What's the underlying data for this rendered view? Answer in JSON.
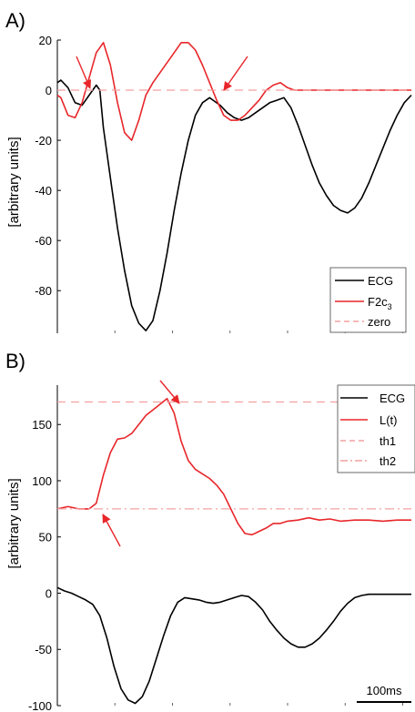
{
  "chart_data": [
    {
      "type": "line",
      "panel_label": "A)",
      "ylabel": "[arbitrary units]",
      "ylim": [
        -97,
        20
      ],
      "yticks": [
        20,
        0,
        -20,
        -40,
        -60,
        -80
      ],
      "xlim": [
        0,
        100
      ],
      "grid": false,
      "legend": {
        "position": "bottom-right",
        "entries": [
          "ECG",
          "F2c3",
          "zero"
        ]
      },
      "annotations": [
        "arrow near first F2c3 zero crossing",
        "arrow near second F2c3 zero crossing"
      ],
      "series": [
        {
          "name": "ECG",
          "color": "#000000",
          "style": "solid",
          "x": [
            0,
            1,
            3,
            5,
            7,
            9,
            11,
            12,
            13,
            15,
            17,
            19,
            21,
            23,
            25,
            27,
            29,
            31,
            33,
            35,
            37,
            39,
            41,
            43,
            44,
            46,
            48,
            50,
            52,
            54,
            56,
            58,
            60,
            62,
            64,
            66,
            68,
            70,
            72,
            74,
            76,
            78,
            80,
            82,
            84,
            86,
            88,
            90,
            92,
            94,
            96,
            98,
            100
          ],
          "y": [
            3,
            4,
            1,
            -5,
            -6,
            -2,
            2,
            0,
            -15,
            -35,
            -55,
            -72,
            -86,
            -93,
            -96,
            -92,
            -80,
            -65,
            -48,
            -33,
            -20,
            -10,
            -5,
            -3,
            -4,
            -6,
            -9,
            -11,
            -12,
            -11,
            -9,
            -7,
            -5,
            -4,
            -3,
            -7,
            -14,
            -22,
            -30,
            -37,
            -42,
            -46,
            -48,
            -49,
            -47,
            -43,
            -37,
            -30,
            -23,
            -16,
            -10,
            -5,
            -2
          ]
        },
        {
          "name": "F2c3",
          "color": "#e8262a",
          "style": "solid",
          "x": [
            0,
            1,
            3,
            5,
            7,
            9,
            11,
            13,
            15,
            17,
            19,
            21,
            23,
            25,
            27,
            29,
            31,
            33,
            35,
            37,
            39,
            41,
            43,
            45,
            47,
            49,
            51,
            53,
            55,
            57,
            59,
            61,
            63,
            65,
            67,
            69,
            72,
            75,
            80,
            85,
            90,
            95,
            100
          ],
          "y": [
            -2,
            -3,
            -10,
            -11,
            -5,
            5,
            15,
            19,
            10,
            -5,
            -17,
            -20,
            -12,
            -2,
            3,
            7,
            11,
            15,
            19,
            19,
            16,
            10,
            3,
            -4,
            -10,
            -12,
            -12,
            -10,
            -7,
            -4,
            0,
            2,
            3,
            1,
            0,
            0,
            0,
            0,
            0,
            0,
            0,
            0,
            0
          ]
        },
        {
          "name": "zero",
          "color": "#f4a0a0",
          "style": "dashed",
          "x": [
            0,
            100
          ],
          "y": [
            0,
            0
          ]
        }
      ]
    },
    {
      "type": "line",
      "panel_label": "B)",
      "ylabel": "[arbitrary units]",
      "ylim": [
        -100,
        185
      ],
      "yticks": [
        150,
        100,
        50,
        0,
        -50,
        -100
      ],
      "xlim": [
        0,
        100
      ],
      "grid": false,
      "legend": {
        "position": "top-right",
        "entries": [
          "ECG",
          "L(t)",
          "th1",
          "th2"
        ]
      },
      "scale_bar": "100ms",
      "annotations": [
        "arrow at L(t) rise crossing th2",
        "arrow at L(t) peak near th1"
      ],
      "series": [
        {
          "name": "ECG",
          "color": "#000000",
          "style": "solid",
          "x": [
            0,
            2,
            4,
            6,
            8,
            10,
            12,
            14,
            16,
            18,
            20,
            22,
            24,
            26,
            28,
            30,
            32,
            34,
            36,
            38,
            40,
            42,
            44,
            46,
            48,
            50,
            52,
            54,
            56,
            58,
            60,
            62,
            64,
            66,
            68,
            70,
            72,
            74,
            76,
            78,
            80,
            82,
            84,
            86,
            88,
            90,
            92,
            94,
            96,
            98,
            100
          ],
          "y": [
            5,
            2,
            0,
            -3,
            -6,
            -10,
            -20,
            -40,
            -65,
            -85,
            -95,
            -98,
            -92,
            -78,
            -58,
            -38,
            -20,
            -8,
            -4,
            -5,
            -6,
            -8,
            -9,
            -8,
            -6,
            -4,
            -2,
            -3,
            -8,
            -15,
            -25,
            -33,
            -40,
            -45,
            -48,
            -48,
            -45,
            -40,
            -33,
            -25,
            -16,
            -9,
            -4,
            -2,
            -1,
            -1,
            -1,
            -1,
            -1,
            -1,
            -1
          ]
        },
        {
          "name": "L(t)",
          "color": "#e8262a",
          "style": "solid",
          "x": [
            0,
            3,
            6,
            9,
            11,
            13,
            15,
            17,
            19,
            21,
            23,
            25,
            27,
            29,
            31,
            33,
            35,
            37,
            39,
            41,
            43,
            45,
            47,
            49,
            51,
            53,
            55,
            57,
            59,
            61,
            63,
            65,
            68,
            71,
            74,
            77,
            80,
            84,
            88,
            92,
            96,
            100
          ],
          "y": [
            75,
            77,
            75,
            75,
            80,
            105,
            125,
            137,
            138,
            142,
            150,
            158,
            163,
            168,
            173,
            160,
            135,
            118,
            110,
            106,
            102,
            96,
            88,
            75,
            62,
            53,
            52,
            55,
            58,
            62,
            62,
            64,
            65,
            67,
            65,
            66,
            64,
            65,
            65,
            64,
            65,
            65
          ]
        },
        {
          "name": "th1",
          "color": "#f4a0a0",
          "style": "dashed",
          "x": [
            0,
            100
          ],
          "y": [
            170,
            170
          ]
        },
        {
          "name": "th2",
          "color": "#f4a0a0",
          "style": "dashdot",
          "x": [
            0,
            100
          ],
          "y": [
            75,
            75
          ]
        }
      ]
    }
  ]
}
